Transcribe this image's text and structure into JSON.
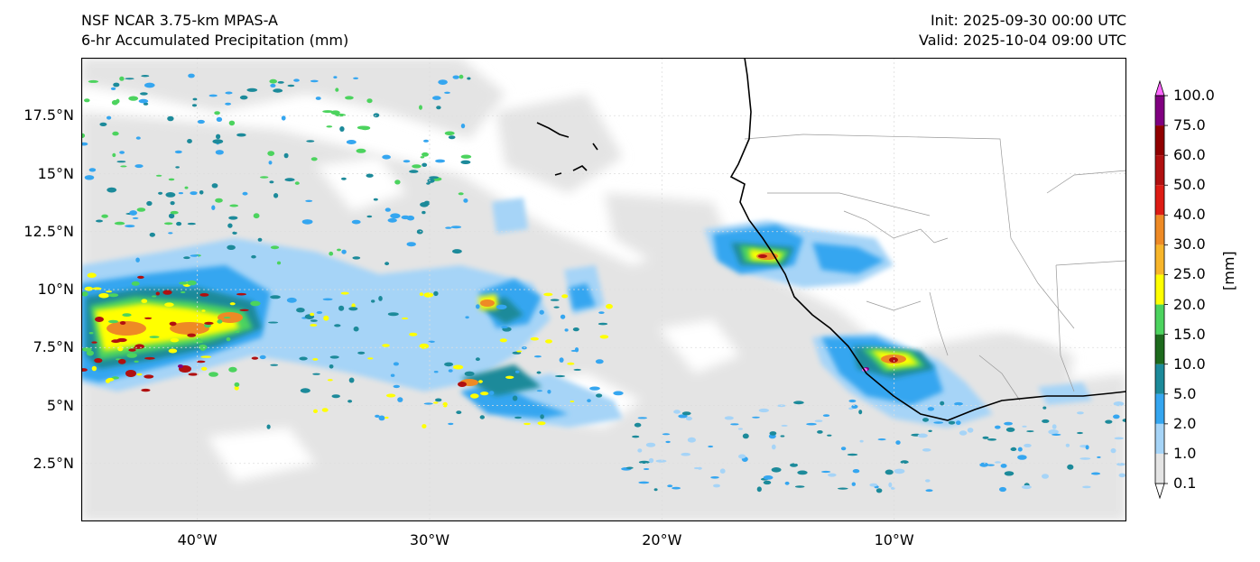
{
  "header": {
    "model": "NSF NCAR 3.75-km MPAS-A",
    "field": "6-hr Accumulated Precipitation (mm)",
    "init": "Init: 2025-09-30 00:00 UTC",
    "valid": "Valid: 2025-10-04 09:00 UTC"
  },
  "map": {
    "lon_range": [
      -45,
      0
    ],
    "lat_range": [
      0,
      20
    ],
    "y_ticks": [
      {
        "lat": 17.5,
        "label": "17.5°N"
      },
      {
        "lat": 15,
        "label": "15°N"
      },
      {
        "lat": 12.5,
        "label": "12.5°N"
      },
      {
        "lat": 10,
        "label": "10°N"
      },
      {
        "lat": 7.5,
        "label": "7.5°N"
      },
      {
        "lat": 5,
        "label": "5°N"
      },
      {
        "lat": 2.5,
        "label": "2.5°N"
      }
    ],
    "x_ticks": [
      {
        "lon": -40,
        "label": "40°W"
      },
      {
        "lon": -30,
        "label": "30°W"
      },
      {
        "lon": -20,
        "label": "20°W"
      },
      {
        "lon": -10,
        "label": "10°W"
      }
    ],
    "grid": true
  },
  "colorbar": {
    "units": "[mm]",
    "levels": [
      {
        "label": "0.1",
        "color": "#e4e4e4"
      },
      {
        "label": "1.0",
        "color": "#a6d4f7"
      },
      {
        "label": "2.0",
        "color": "#35a6f0"
      },
      {
        "label": "5.0",
        "color": "#1c8a9a"
      },
      {
        "label": "10.0",
        "color": "#1d6a1d"
      },
      {
        "label": "15.0",
        "color": "#4cd35e"
      },
      {
        "label": "20.0",
        "color": "#ffff00"
      },
      {
        "label": "25.0",
        "color": "#f7b52a"
      },
      {
        "label": "30.0",
        "color": "#ee8a25"
      },
      {
        "label": "40.0",
        "color": "#dd1c14"
      },
      {
        "label": "50.0",
        "color": "#b01010"
      },
      {
        "label": "60.0",
        "color": "#900000"
      },
      {
        "label": "75.0",
        "color": "#800080"
      },
      {
        "label": "100.0",
        "color": "#ff66ff"
      }
    ]
  }
}
